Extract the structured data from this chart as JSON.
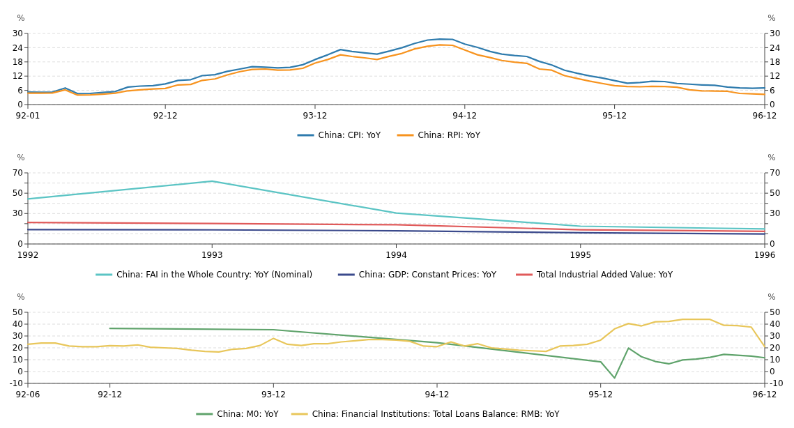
{
  "chart_data": [
    {
      "type": "line",
      "x": [
        "1992-01",
        "1992-02",
        "1992-03",
        "1992-04",
        "1992-05",
        "1992-06",
        "1992-07",
        "1992-08",
        "1992-09",
        "1992-10",
        "1992-11",
        "1992-12",
        "1993-01",
        "1993-02",
        "1993-03",
        "1993-04",
        "1993-05",
        "1993-06",
        "1993-07",
        "1993-08",
        "1993-09",
        "1993-10",
        "1993-11",
        "1993-12",
        "1994-01",
        "1994-02",
        "1994-03",
        "1994-04",
        "1994-05",
        "1994-06",
        "1994-07",
        "1994-08",
        "1994-09",
        "1994-10",
        "1994-11",
        "1994-12",
        "1995-01",
        "1995-02",
        "1995-03",
        "1995-04",
        "1995-05",
        "1995-06",
        "1995-07",
        "1995-08",
        "1995-09",
        "1995-10",
        "1995-11",
        "1995-12",
        "1996-01",
        "1996-02",
        "1996-03",
        "1996-04",
        "1996-05",
        "1996-06",
        "1996-07",
        "1996-08",
        "1996-09",
        "1996-10",
        "1996-11",
        "1996-12"
      ],
      "series": [
        {
          "name": "China: CPI: YoY",
          "color": "#2e7bad",
          "values": [
            5.3,
            5.2,
            5.3,
            7.0,
            4.6,
            4.7,
            5.1,
            5.5,
            7.4,
            7.8,
            8.0,
            8.7,
            10.2,
            10.5,
            12.2,
            12.6,
            14.0,
            15.0,
            16.0,
            15.8,
            15.5,
            15.7,
            16.8,
            19.0,
            21.0,
            23.2,
            22.4,
            21.8,
            21.3,
            22.6,
            24.0,
            25.8,
            27.2,
            27.6,
            27.5,
            25.5,
            24.1,
            22.4,
            21.3,
            20.7,
            20.3,
            18.2,
            16.7,
            14.5,
            13.2,
            12.1,
            11.2,
            10.1,
            9.0,
            9.3,
            9.8,
            9.7,
            8.9,
            8.6,
            8.3,
            8.1,
            7.4,
            7.0,
            6.9,
            7.0
          ]
        },
        {
          "name": "China: RPI: YoY",
          "color": "#f7931e",
          "values": [
            4.8,
            4.8,
            4.9,
            6.2,
            4.0,
            4.1,
            4.4,
            4.8,
            5.8,
            6.2,
            6.6,
            6.8,
            8.3,
            8.5,
            10.2,
            10.8,
            12.5,
            13.9,
            14.8,
            15.0,
            14.5,
            14.6,
            15.3,
            17.5,
            19.0,
            21.0,
            20.3,
            19.7,
            19.0,
            20.4,
            21.6,
            23.5,
            24.6,
            25.2,
            25.0,
            23.0,
            21.0,
            19.8,
            18.6,
            17.9,
            17.4,
            15.0,
            14.5,
            12.2,
            11.0,
            9.9,
            8.9,
            8.0,
            7.6,
            7.5,
            7.7,
            7.6,
            7.3,
            6.2,
            5.8,
            5.7,
            5.6,
            4.7,
            4.5,
            4.3
          ]
        }
      ],
      "xlim": [
        "1992-01",
        "1996-12"
      ],
      "xticks": [
        {
          "value": "1992-01",
          "label": "92-01"
        },
        {
          "value": "1992-12",
          "label": "92-12"
        },
        {
          "value": "1993-12",
          "label": "93-12"
        },
        {
          "value": "1994-12",
          "label": "94-12"
        },
        {
          "value": "1995-12",
          "label": "95-12"
        },
        {
          "value": "1996-12",
          "label": "96-12"
        }
      ],
      "ylim": [
        0,
        30
      ],
      "yticks": [
        0,
        6,
        12,
        18,
        24,
        30
      ],
      "y2lim": [
        0,
        30
      ],
      "y2ticks": [
        0,
        6,
        12,
        18,
        24,
        30
      ],
      "ylabel": "%",
      "y2label": "%",
      "grid": "y",
      "legend": "bottom",
      "marker": "none",
      "line_style": "solid"
    },
    {
      "type": "line",
      "x": [
        1992,
        1993,
        1994,
        1995,
        1996
      ],
      "series": [
        {
          "name": "China: FAI in the Whole Country: YoY (Nominal)",
          "color": "#5bc4c4",
          "values": [
            44.4,
            61.8,
            30.4,
            17.5,
            14.8
          ]
        },
        {
          "name": "China: GDP: Constant Prices: YoY",
          "color": "#3b4a8c",
          "values": [
            14.2,
            13.9,
            13.0,
            11.0,
            9.9
          ]
        },
        {
          "name": "Total Industrial Added Value: YoY",
          "color": "#e05a5a",
          "values": [
            21.2,
            20.1,
            18.9,
            14.0,
            12.5
          ]
        }
      ],
      "xlim": [
        1992,
        1996
      ],
      "xticks": [
        1992,
        1993,
        1994,
        1995,
        1996
      ],
      "ylim": [
        0,
        70
      ],
      "yticks": [
        0,
        {
          "value": 10,
          "label": null
        },
        {
          "value": 20,
          "label": null
        },
        30,
        {
          "value": 40,
          "label": null
        },
        50,
        {
          "value": 60,
          "label": null
        },
        70
      ],
      "y2lim": [
        0,
        70
      ],
      "y2ticks": [
        0,
        {
          "value": 10,
          "label": null
        },
        {
          "value": 20,
          "label": null
        },
        30,
        {
          "value": 40,
          "label": null
        },
        50,
        {
          "value": 60,
          "label": null
        },
        70
      ],
      "ylabel": "%",
      "y2label": "%",
      "grid": "y",
      "legend": "bottom",
      "marker": "none",
      "line_style": "solid"
    },
    {
      "type": "line",
      "series": [
        {
          "name": "China: M0: YoY",
          "color": "#5fa36b",
          "x": [
            "1992-12",
            "1993-12",
            "1994-12",
            "1995-12",
            "1996-01",
            "1996-02",
            "1996-03",
            "1996-04",
            "1996-05",
            "1996-06",
            "1996-07",
            "1996-08",
            "1996-09",
            "1996-10",
            "1996-11",
            "1996-12"
          ],
          "values": [
            36.4,
            35.3,
            24.3,
            8.2,
            -5.5,
            19.8,
            12.5,
            8.5,
            6.5,
            9.8,
            10.5,
            12.0,
            14.5,
            13.7,
            13.0,
            11.6
          ]
        },
        {
          "name": "China: Financial Institutions: Total Loans Balance: RMB: YoY",
          "color": "#e8c65a",
          "x": [
            "1992-06",
            "1992-07",
            "1992-08",
            "1992-09",
            "1992-10",
            "1992-11",
            "1992-12",
            "1993-01",
            "1993-02",
            "1993-03",
            "1993-04",
            "1993-05",
            "1993-06",
            "1993-07",
            "1993-08",
            "1993-09",
            "1993-10",
            "1993-11",
            "1993-12",
            "1994-01",
            "1994-02",
            "1994-03",
            "1994-04",
            "1994-05",
            "1994-06",
            "1994-07",
            "1994-08",
            "1994-09",
            "1994-10",
            "1994-11",
            "1994-12",
            "1995-01",
            "1995-02",
            "1995-03",
            "1995-04",
            "1995-05",
            "1995-06",
            "1995-07",
            "1995-08",
            "1995-09",
            "1995-10",
            "1995-11",
            "1995-12",
            "1996-01",
            "1996-02",
            "1996-03",
            "1996-04",
            "1996-05",
            "1996-06",
            "1996-07",
            "1996-08",
            "1996-09",
            "1996-10",
            "1996-11",
            "1996-12"
          ],
          "values": [
            23,
            24,
            24,
            21.5,
            21,
            21,
            21.8,
            21.5,
            22.5,
            20.5,
            20,
            19.5,
            18,
            17,
            16.5,
            18.8,
            19.5,
            22,
            28,
            23,
            22,
            23.5,
            23.5,
            25,
            26,
            27,
            27,
            26.5,
            25.5,
            21.5,
            21,
            25,
            21.5,
            23.5,
            20,
            19,
            18,
            17.5,
            17,
            21.5,
            22,
            23,
            26.5,
            36,
            40.5,
            38.5,
            42,
            42.3,
            44,
            44,
            44,
            39,
            38.8,
            37.5,
            21
          ]
        }
      ],
      "xlim": [
        "1992-06",
        "1996-12"
      ],
      "xticks": [
        {
          "value": "1992-06",
          "label": "92-06"
        },
        {
          "value": "1992-12",
          "label": "92-12"
        },
        {
          "value": "1993-12",
          "label": "93-12"
        },
        {
          "value": "1994-12",
          "label": "94-12"
        },
        {
          "value": "1995-12",
          "label": "95-12"
        },
        {
          "value": "1996-12",
          "label": "96-12"
        }
      ],
      "ylim": [
        -10,
        50
      ],
      "yticks": [
        -10,
        0,
        10,
        20,
        30,
        40,
        50
      ],
      "y2lim": [
        -10,
        50
      ],
      "y2ticks": [
        -10,
        0,
        10,
        20,
        30,
        40,
        50
      ],
      "ylabel": "%",
      "y2label": "%",
      "grid": "y",
      "legend": "bottom",
      "marker": "none",
      "line_style": "solid"
    }
  ]
}
